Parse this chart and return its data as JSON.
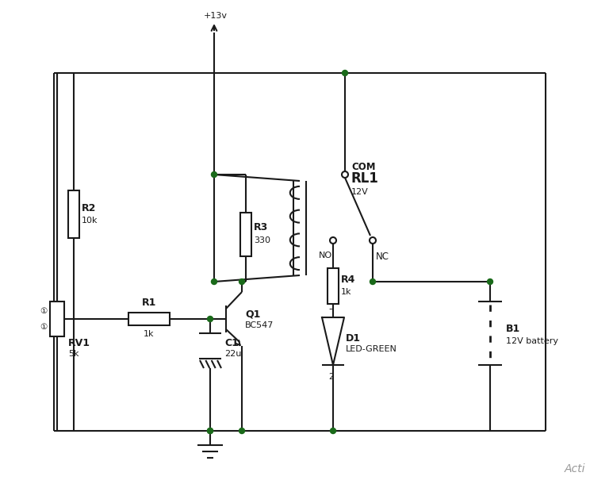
{
  "bg": "#ffffff",
  "lc": "#1a1a1a",
  "lw": 1.5,
  "dc": "#1a6a1a",
  "watermark": "Acti",
  "vcc_label": "+13v",
  "R2_label": "R2",
  "R2_val": "10k",
  "R3_label": "R3",
  "R3_val": "330",
  "R1_label": "R1",
  "R1_val": "1k",
  "R4_label": "R4",
  "R4_val": "1k",
  "RV1_label": "RV1",
  "RV1_val": "5k",
  "C1_label": "C1",
  "C1_val": "22u",
  "Q1_label": "Q1",
  "Q1_val": "BC547",
  "D1_label": "D1",
  "D1_val": "LED-GREEN",
  "RL1_label": "RL1",
  "RL1_val": "12V",
  "B1_label": "B1",
  "B1_val": "12V battery",
  "COM_label": "COM",
  "NO_label": "NO",
  "NC_label": "NC"
}
